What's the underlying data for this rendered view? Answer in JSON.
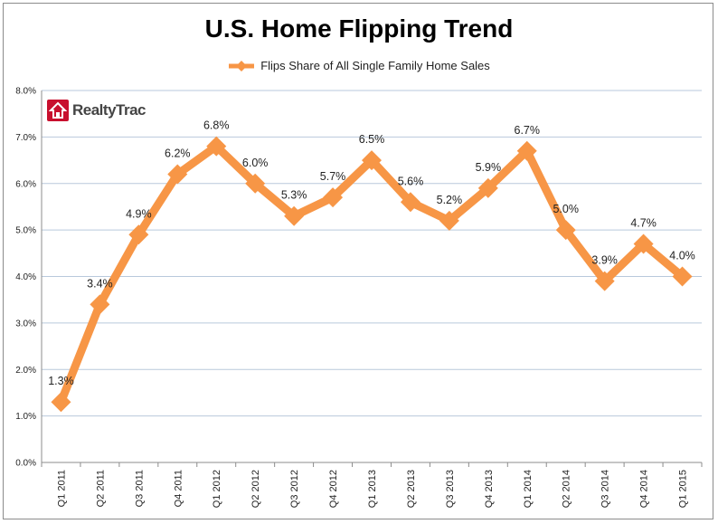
{
  "chart_data": {
    "type": "line",
    "title": "U.S. Home Flipping Trend",
    "xlabel": "",
    "ylabel": "",
    "categories": [
      "Q1 2011",
      "Q2 2011",
      "Q3 2011",
      "Q4 2011",
      "Q1 2012",
      "Q2 2012",
      "Q3 2012",
      "Q4 2012",
      "Q1 2013",
      "Q2 2013",
      "Q3 2013",
      "Q4 2013",
      "Q1 2014",
      "Q2 2014",
      "Q3 2014",
      "Q4 2014",
      "Q1 2015"
    ],
    "series": [
      {
        "name": "Flips Share of All Single Family Home Sales",
        "values": [
          1.3,
          3.4,
          4.9,
          6.2,
          6.8,
          6.0,
          5.3,
          5.7,
          6.5,
          5.6,
          5.2,
          5.9,
          6.7,
          5.0,
          3.9,
          4.7,
          4.0
        ],
        "labels": [
          "1.3%",
          "3.4%",
          "4.9%",
          "6.2%",
          "6.8%",
          "6.0%",
          "5.3%",
          "5.7%",
          "6.5%",
          "5.6%",
          "5.2%",
          "5.9%",
          "6.7%",
          "5.0%",
          "3.9%",
          "4.7%",
          "4.0%"
        ],
        "color": "#f79646"
      }
    ],
    "ylim": [
      0,
      8
    ],
    "yticks": [
      0,
      1,
      2,
      3,
      4,
      5,
      6,
      7,
      8
    ],
    "ytick_labels": [
      "0.0%",
      "1.0%",
      "2.0%",
      "3.0%",
      "4.0%",
      "5.0%",
      "6.0%",
      "7.0%",
      "8.0%"
    ],
    "grid": true,
    "legend": "top-center",
    "gridline_color": "#b9c9dc"
  },
  "logo": {
    "text": "RealtyTrac",
    "color": "#c8102e"
  }
}
